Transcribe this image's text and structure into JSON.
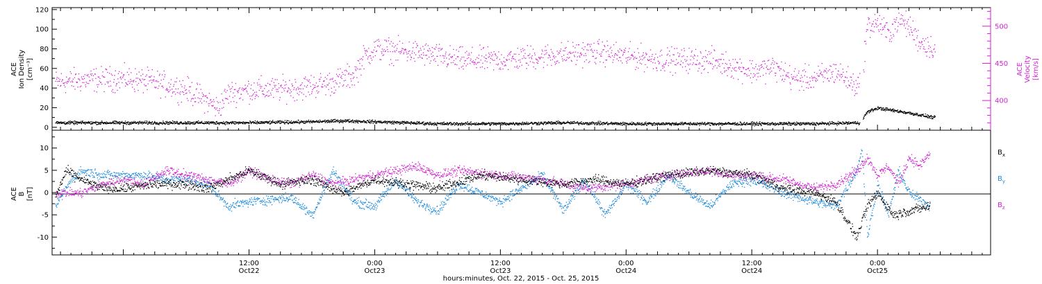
{
  "figure": {
    "xlabel": "hours:minutes, Oct. 22, 2015 - Oct. 25, 2015",
    "x_ticks": [
      {
        "time": "12:00",
        "date": "Oct22",
        "hours": 12
      },
      {
        "time": "0:00",
        "date": "Oct23",
        "hours": 24
      },
      {
        "time": "12:00",
        "date": "Oct23",
        "hours": 36
      },
      {
        "time": "0:00",
        "date": "Oct24",
        "hours": 48
      },
      {
        "time": "12:00",
        "date": "Oct24",
        "hours": 60
      },
      {
        "time": "0:00",
        "date": "Oct25",
        "hours": 72
      }
    ]
  },
  "colors": {
    "black": "#000000",
    "magenta": "#d11fd1",
    "blue": "#1a8be0"
  },
  "chart_data": [
    {
      "type": "scatter",
      "title": "",
      "xlim_hours": [
        -6.8,
        82.8
      ],
      "left_axis": {
        "label_lines": [
          "ACE",
          "Ion Density",
          "[cm⁻³]"
        ],
        "ylim": [
          -3,
          122
        ],
        "ticks": [
          0,
          20,
          40,
          60,
          80,
          100,
          120
        ]
      },
      "right_axis": {
        "label_lines": [
          "ACE",
          "Velocity",
          "[km/s]"
        ],
        "ylim": [
          360,
          525
        ],
        "ticks": [
          400,
          450,
          500
        ]
      },
      "series": [
        {
          "axis": "left",
          "color": "#000000",
          "x_hours": [
            -6.5,
            0,
            6,
            12,
            18,
            21,
            24,
            30,
            36,
            42,
            48,
            54,
            60,
            66,
            70.3,
            71,
            72,
            75,
            77.5
          ],
          "values": [
            5,
            5,
            5,
            5,
            6,
            7,
            6,
            4,
            4,
            5,
            4,
            4,
            4,
            4,
            5,
            16,
            20,
            15,
            10
          ]
        },
        {
          "axis": "right",
          "color": "#d11fd1",
          "x_hours": [
            -6.5,
            -4,
            0,
            3,
            6,
            8,
            9,
            10,
            12,
            14,
            17,
            20,
            22,
            23,
            24,
            28,
            32,
            36,
            40,
            44,
            46,
            48,
            52,
            56,
            60,
            62,
            64,
            66,
            68,
            70,
            70.4,
            71,
            72,
            73,
            74,
            75,
            76,
            77.5
          ],
          "values": [
            425,
            428,
            430,
            425,
            415,
            400,
            390,
            410,
            415,
            415,
            418,
            425,
            435,
            460,
            470,
            465,
            455,
            455,
            460,
            465,
            465,
            460,
            455,
            455,
            440,
            445,
            430,
            430,
            440,
            420,
            425,
            500,
            505,
            490,
            510,
            500,
            480,
            470
          ]
        }
      ]
    },
    {
      "type": "scatter",
      "title": "",
      "xlim_hours": [
        -6.8,
        82.8
      ],
      "left_axis": {
        "label_lines": [
          "ACE",
          "B",
          "[nT]"
        ],
        "ylim": [
          -14,
          14
        ],
        "ticks": [
          -10,
          -5,
          0,
          5,
          10
        ]
      },
      "legend": {
        "placement": "right"
      },
      "series": [
        {
          "name": "B",
          "subscript": "x",
          "color": "#000000",
          "x_hours": [
            -6.5,
            -5.5,
            -4,
            -2,
            0,
            3,
            6,
            8,
            10,
            12,
            15,
            18,
            21,
            24,
            27,
            30,
            34,
            38,
            42,
            45,
            48,
            52,
            56,
            60,
            63,
            66,
            68,
            70,
            71,
            72,
            73.5,
            75,
            77
          ],
          "values": [
            -1,
            5,
            3,
            1,
            1,
            2,
            2,
            1,
            3,
            5,
            2,
            3,
            0,
            3,
            2,
            1,
            4,
            3,
            2,
            3,
            2,
            4,
            5,
            4,
            1,
            0,
            -2,
            -10,
            -3,
            0,
            -5,
            -4,
            -3
          ]
        },
        {
          "name": "B",
          "subscript": "y",
          "color": "#1a8be0",
          "x_hours": [
            -6.5,
            -5,
            -4,
            -2,
            0,
            2,
            4,
            6,
            8,
            10,
            12,
            16,
            18,
            20,
            22,
            24,
            26,
            28,
            30,
            32,
            36,
            40,
            42,
            44,
            46,
            48,
            50,
            52,
            54,
            56,
            58,
            60,
            63,
            66,
            68,
            70,
            70.5,
            71,
            72,
            73,
            74,
            75,
            77
          ],
          "values": [
            -3,
            3,
            5,
            4,
            4,
            4,
            3,
            3,
            2,
            -3,
            -2,
            -1,
            -5,
            5,
            -2,
            -3,
            3,
            -2,
            -4,
            2,
            -2,
            4,
            -4,
            3,
            -5,
            2,
            -2,
            4,
            0,
            -3,
            2,
            3,
            0,
            -2,
            -3,
            5,
            10,
            -10,
            2,
            -5,
            5,
            0,
            -3
          ]
        },
        {
          "name": "B",
          "subscript": "z",
          "color": "#d11fd1",
          "x_hours": [
            -6.5,
            -4,
            -2,
            0,
            2,
            4,
            6,
            8,
            10,
            12,
            14,
            16,
            18,
            20,
            22,
            24,
            26,
            28,
            30,
            32,
            36,
            40,
            44,
            48,
            52,
            56,
            58,
            60,
            63,
            66,
            68,
            70,
            71,
            72,
            73,
            74,
            75,
            76,
            77
          ],
          "values": [
            0,
            0,
            2,
            3,
            2,
            5,
            4,
            3,
            2,
            5,
            3,
            2,
            4,
            2,
            3,
            4,
            5,
            6,
            4,
            5,
            4,
            3,
            1,
            2,
            4,
            5,
            4,
            4,
            3,
            1,
            2,
            5,
            8,
            4,
            6,
            2,
            8,
            6,
            9
          ]
        }
      ]
    }
  ]
}
